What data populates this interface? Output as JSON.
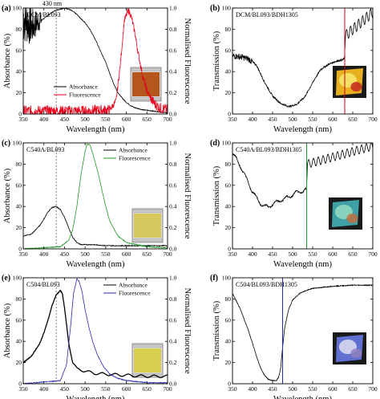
{
  "figure": {
    "top_annotation": "430 nm",
    "colors": {
      "absorbance": "#000000",
      "fluorescence_red": "#e8001a",
      "fluorescence_green": "#1f9a2a",
      "fluorescence_blue": "#2a2ab0",
      "marker_line_red": "#d0001a",
      "marker_line_green": "#1f9a2a",
      "marker_line_blue": "#2a2ab0",
      "axes": "#000000"
    }
  },
  "chart_data": [
    {
      "panel": "(a)",
      "type": "line",
      "label": "DCM/BL093",
      "xlabel": "Wavelength (nm)",
      "ylabel": "Absorbance (%)",
      "y2label": "Normalised Fluorescence",
      "xlim": [
        350,
        700
      ],
      "ylim": [
        0,
        100
      ],
      "xticks": [
        350,
        400,
        450,
        500,
        550,
        600,
        650,
        700
      ],
      "yticks": [
        0,
        20,
        40,
        60,
        80,
        100
      ],
      "legend": [
        "Absorbance",
        "Fluorescence"
      ],
      "legend_position": "center-left",
      "dashed_line_x": 430,
      "inset": "orange-brown cell photo",
      "series": [
        {
          "name": "Absorbance",
          "color": "#000000",
          "style": "noisy-below-395",
          "x": [
            350,
            360,
            370,
            380,
            390,
            400,
            410,
            420,
            430,
            440,
            450,
            460,
            470,
            480,
            490,
            500,
            510,
            520,
            530,
            540,
            550,
            560,
            570,
            580,
            590,
            600,
            610,
            620,
            640,
            660,
            680,
            700
          ],
          "y": [
            92,
            88,
            82,
            85,
            88,
            90,
            93,
            96,
            98,
            99,
            100,
            99,
            97,
            94,
            90,
            86,
            81,
            74,
            66,
            57,
            49,
            38,
            28,
            20,
            15,
            11,
            8,
            6,
            4,
            3,
            2,
            1
          ]
        },
        {
          "name": "Fluorescence",
          "color": "#e8001a",
          "style": "noisy",
          "x": [
            350,
            500,
            560,
            575,
            585,
            595,
            605,
            612,
            620,
            630,
            640,
            650,
            660,
            670,
            680,
            690,
            700
          ],
          "y": [
            3,
            3,
            4,
            12,
            45,
            88,
            98,
            92,
            78,
            55,
            35,
            22,
            14,
            9,
            6,
            5,
            4
          ]
        }
      ]
    },
    {
      "panel": "(b)",
      "type": "line",
      "label": "DCM/BL093/BDH1305",
      "xlabel": "Wavelength (nm)",
      "ylabel": "Transmission (%)",
      "xlim": [
        350,
        700
      ],
      "ylim": [
        0,
        100
      ],
      "xticks": [
        350,
        400,
        450,
        500,
        550,
        600,
        650,
        700
      ],
      "yticks": [
        0,
        20,
        40,
        60,
        80,
        100
      ],
      "marker_x": 630,
      "marker_color": "#d0001a",
      "inset": "yellow-red cell photo",
      "series": [
        {
          "name": "",
          "color": "#000000",
          "style": "noisy-start",
          "x": [
            350,
            370,
            390,
            410,
            430,
            450,
            470,
            490,
            510,
            530,
            545,
            555,
            570,
            590,
            610,
            625,
            630
          ],
          "y": [
            55,
            54,
            52,
            46,
            30,
            17,
            10,
            7,
            9,
            16,
            26,
            33,
            42,
            47,
            50,
            51,
            53
          ],
          "osc": {
            "x0": 632,
            "x1": 700,
            "y0": 74,
            "y1": 96,
            "amp": 5,
            "period": 10
          }
        }
      ]
    },
    {
      "panel": "(c)",
      "type": "line",
      "label": "C540A/BL093",
      "xlabel": "Wavelength (nm)",
      "ylabel": "Absorbance (%)",
      "y2label": "Normalised Fluorescence",
      "xlim": [
        350,
        700
      ],
      "ylim": [
        0,
        100
      ],
      "xticks": [
        350,
        400,
        450,
        500,
        550,
        600,
        650,
        700
      ],
      "yticks": [
        0,
        20,
        40,
        60,
        80,
        100
      ],
      "legend": [
        "Absorbance",
        "Fluorescence"
      ],
      "legend_position": "top-right",
      "dashed_line_x": 430,
      "inset": "yellow cell photo",
      "series": [
        {
          "name": "Absorbance",
          "color": "#000000",
          "style": "smooth",
          "x": [
            350,
            370,
            390,
            400,
            410,
            420,
            430,
            440,
            450,
            460,
            470,
            480,
            490,
            500,
            520,
            550,
            600,
            650,
            700
          ],
          "y": [
            12,
            14,
            22,
            28,
            35,
            39,
            40,
            37,
            30,
            20,
            11,
            6,
            4,
            4,
            4,
            3,
            3,
            3,
            3
          ]
        },
        {
          "name": "Fluorescence",
          "color": "#1f9a2a",
          "style": "smooth",
          "x": [
            350,
            440,
            460,
            470,
            480,
            490,
            500,
            505,
            512,
            520,
            530,
            540,
            550,
            560,
            580,
            600,
            650,
            700
          ],
          "y": [
            0,
            2,
            8,
            18,
            40,
            70,
            92,
            99,
            98,
            88,
            74,
            57,
            40,
            26,
            12,
            6,
            2,
            1
          ]
        }
      ]
    },
    {
      "panel": "(d)",
      "type": "line",
      "label": "C540A/BL093/BDH1305",
      "xlabel": "Wavelength (nm)",
      "ylabel": "Transmission (%)",
      "xlim": [
        350,
        700
      ],
      "ylim": [
        0,
        100
      ],
      "xticks": [
        350,
        400,
        450,
        500,
        550,
        600,
        650,
        700
      ],
      "yticks": [
        0,
        20,
        40,
        60,
        80,
        100
      ],
      "marker_x": 535,
      "marker_color": "#1f9a2a",
      "inset": "multicolour cell photo",
      "series": [
        {
          "name": "",
          "color": "#000000",
          "style": "wavy",
          "x": [
            350,
            360,
            370,
            380,
            390,
            400,
            410,
            420,
            430,
            440,
            450,
            460,
            470,
            480,
            490,
            500,
            510,
            520,
            530,
            535
          ],
          "y": [
            90,
            85,
            78,
            70,
            62,
            54,
            48,
            43,
            40,
            40,
            42,
            44,
            46,
            47,
            49,
            51,
            53,
            54,
            55,
            56
          ],
          "osc": {
            "x0": 537,
            "x1": 700,
            "y0": 80,
            "y1": 97,
            "amp": 4,
            "period": 12
          }
        }
      ]
    },
    {
      "panel": "(e)",
      "type": "line",
      "label": "C504/BL093",
      "xlabel": "Wavelength (nm)",
      "ylabel": "Absorbance (%)",
      "y2label": "Normalised Fluorescence",
      "xlim": [
        350,
        700
      ],
      "ylim": [
        0,
        100
      ],
      "xticks": [
        350,
        400,
        450,
        500,
        550,
        600,
        650,
        700
      ],
      "yticks": [
        0,
        20,
        40,
        60,
        80,
        100
      ],
      "legend": [
        "Absorbance",
        "Fluorescence"
      ],
      "legend_position": "top-right",
      "dashed_line_x": 430,
      "inset": "yellow cell photo",
      "series": [
        {
          "name": "Absorbance",
          "color": "#000000",
          "style": "smooth-ripple",
          "x": [
            350,
            370,
            390,
            400,
            410,
            420,
            430,
            440,
            445,
            450,
            460,
            470,
            480,
            500,
            520,
            550,
            600,
            650,
            700
          ],
          "y": [
            20,
            26,
            38,
            48,
            60,
            74,
            84,
            88,
            85,
            72,
            40,
            20,
            14,
            12,
            10,
            9,
            8,
            7,
            7
          ]
        },
        {
          "name": "Fluorescence",
          "color": "#2a2ab0",
          "style": "smooth",
          "x": [
            350,
            440,
            455,
            465,
            472,
            480,
            485,
            492,
            500,
            510,
            520,
            530,
            545,
            560,
            580,
            600,
            650,
            700
          ],
          "y": [
            0,
            3,
            18,
            55,
            85,
            99,
            97,
            88,
            70,
            52,
            38,
            27,
            16,
            9,
            5,
            3,
            1,
            1
          ]
        }
      ]
    },
    {
      "panel": "(f)",
      "type": "line",
      "label": "C504/BL093/BDH1305",
      "xlabel": "Wavelength (nm)",
      "ylabel": "Transmission (%)",
      "xlim": [
        350,
        700
      ],
      "ylim": [
        0,
        100
      ],
      "xticks": [
        350,
        400,
        450,
        500,
        550,
        600,
        650,
        700
      ],
      "yticks": [
        0,
        20,
        40,
        60,
        80,
        100
      ],
      "marker_x": 475,
      "marker_color": "#2a2ab0",
      "inset": "blue-white cell photo",
      "series": [
        {
          "name": "",
          "color": "#000000",
          "style": "smooth",
          "x": [
            350,
            360,
            370,
            380,
            390,
            400,
            410,
            420,
            430,
            440,
            450,
            460,
            465,
            470,
            475,
            480,
            490,
            500,
            520,
            550,
            600,
            650,
            700
          ],
          "y": [
            85,
            78,
            70,
            60,
            50,
            38,
            26,
            15,
            8,
            4,
            3,
            3,
            6,
            14,
            34,
            52,
            70,
            79,
            86,
            90,
            92,
            93,
            93
          ]
        }
      ]
    }
  ]
}
